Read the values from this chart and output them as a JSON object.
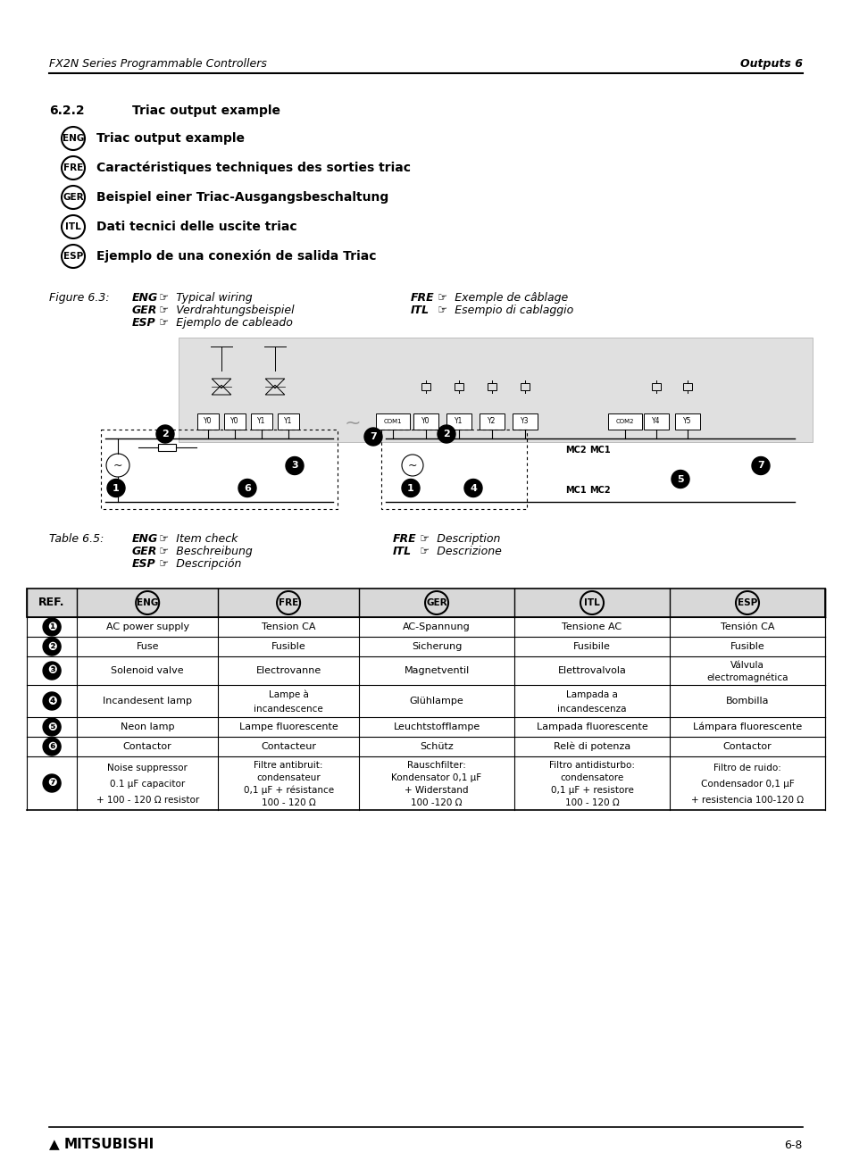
{
  "header_left": "FX2N Series Programmable Controllers",
  "header_right": "Outputs 6",
  "section_num": "6.2.2",
  "section_title": "Triac output example",
  "lang_labels": [
    {
      "code": "ENG",
      "text": "Triac output example"
    },
    {
      "code": "FRE",
      "text": "Caractéristiques techniques des sorties triac"
    },
    {
      "code": "GER",
      "text": "Beispiel einer Triac-Ausgangsbeschaltung"
    },
    {
      "code": "ITL",
      "text": "Dati tecnici delle uscite triac"
    },
    {
      "code": "ESP",
      "text": "Ejemplo de una conexión de salida Triac"
    }
  ],
  "figure_caption": "Figure 6.3:",
  "figure_items_left": [
    [
      "ENG",
      "Typical wiring"
    ],
    [
      "GER",
      "Verdrahtungsbeispiel"
    ],
    [
      "ESP",
      "Ejemplo de cableado"
    ]
  ],
  "figure_items_right": [
    [
      "FRE",
      "Exemple de câblage"
    ],
    [
      "ITL",
      "Esempio di cablaggio"
    ]
  ],
  "table_caption": "Table 6.5:",
  "table_items_left": [
    [
      "ENG",
      "Item check"
    ],
    [
      "GER",
      "Beschreibung"
    ],
    [
      "ESP",
      "Descripción"
    ]
  ],
  "table_items_right": [
    [
      "FRE",
      "Description"
    ],
    [
      "ITL",
      "Descrizione"
    ]
  ],
  "table_headers": [
    "REF.",
    "ENG",
    "FRE",
    "GER",
    "ITL",
    "ESP"
  ],
  "table_rows": [
    [
      "❶",
      "AC power supply",
      "Tension CA",
      "AC-Spannung",
      "Tensione AC",
      "Tensión CA"
    ],
    [
      "❷",
      "Fuse",
      "Fusible",
      "Sicherung",
      "Fusibile",
      "Fusible"
    ],
    [
      "❸",
      "Solenoid valve",
      "Electrovanne",
      "Magnetventil",
      "Elettrovalvola",
      "Válvula\nelectromagnética"
    ],
    [
      "❹",
      "Incandesent lamp",
      "Lampe à\nincandescence",
      "Glühlampe",
      "Lampada a\nincandescenza",
      "Bombilla"
    ],
    [
      "❺",
      "Neon lamp",
      "Lampe fluorescente",
      "Leuchtstofflampe",
      "Lampada fluorescente",
      "Lámpara fluorescente"
    ],
    [
      "❻",
      "Contactor",
      "Contacteur",
      "Schütz",
      "Relè di potenza",
      "Contactor"
    ],
    [
      "❼",
      "Noise suppressor\n0.1 μF capacitor\n+ 100 - 120 Ω resistor",
      "Filtre antibruit:\ncondensateur\n0,1 μF + résistance\n100 - 120 Ω",
      "Rauschfilter:\nKondensator 0,1 μF\n+ Widerstand\n100 -120 Ω",
      "Filtro antidisturbo:\ncondensatore\n0,1 μF + resistore\n100 - 120 Ω",
      "Filtro de ruido:\nCondensador 0,1 μF\n+ resistencia 100-120 Ω"
    ]
  ],
  "footer_text": "6-8",
  "bg_color": "#ffffff"
}
